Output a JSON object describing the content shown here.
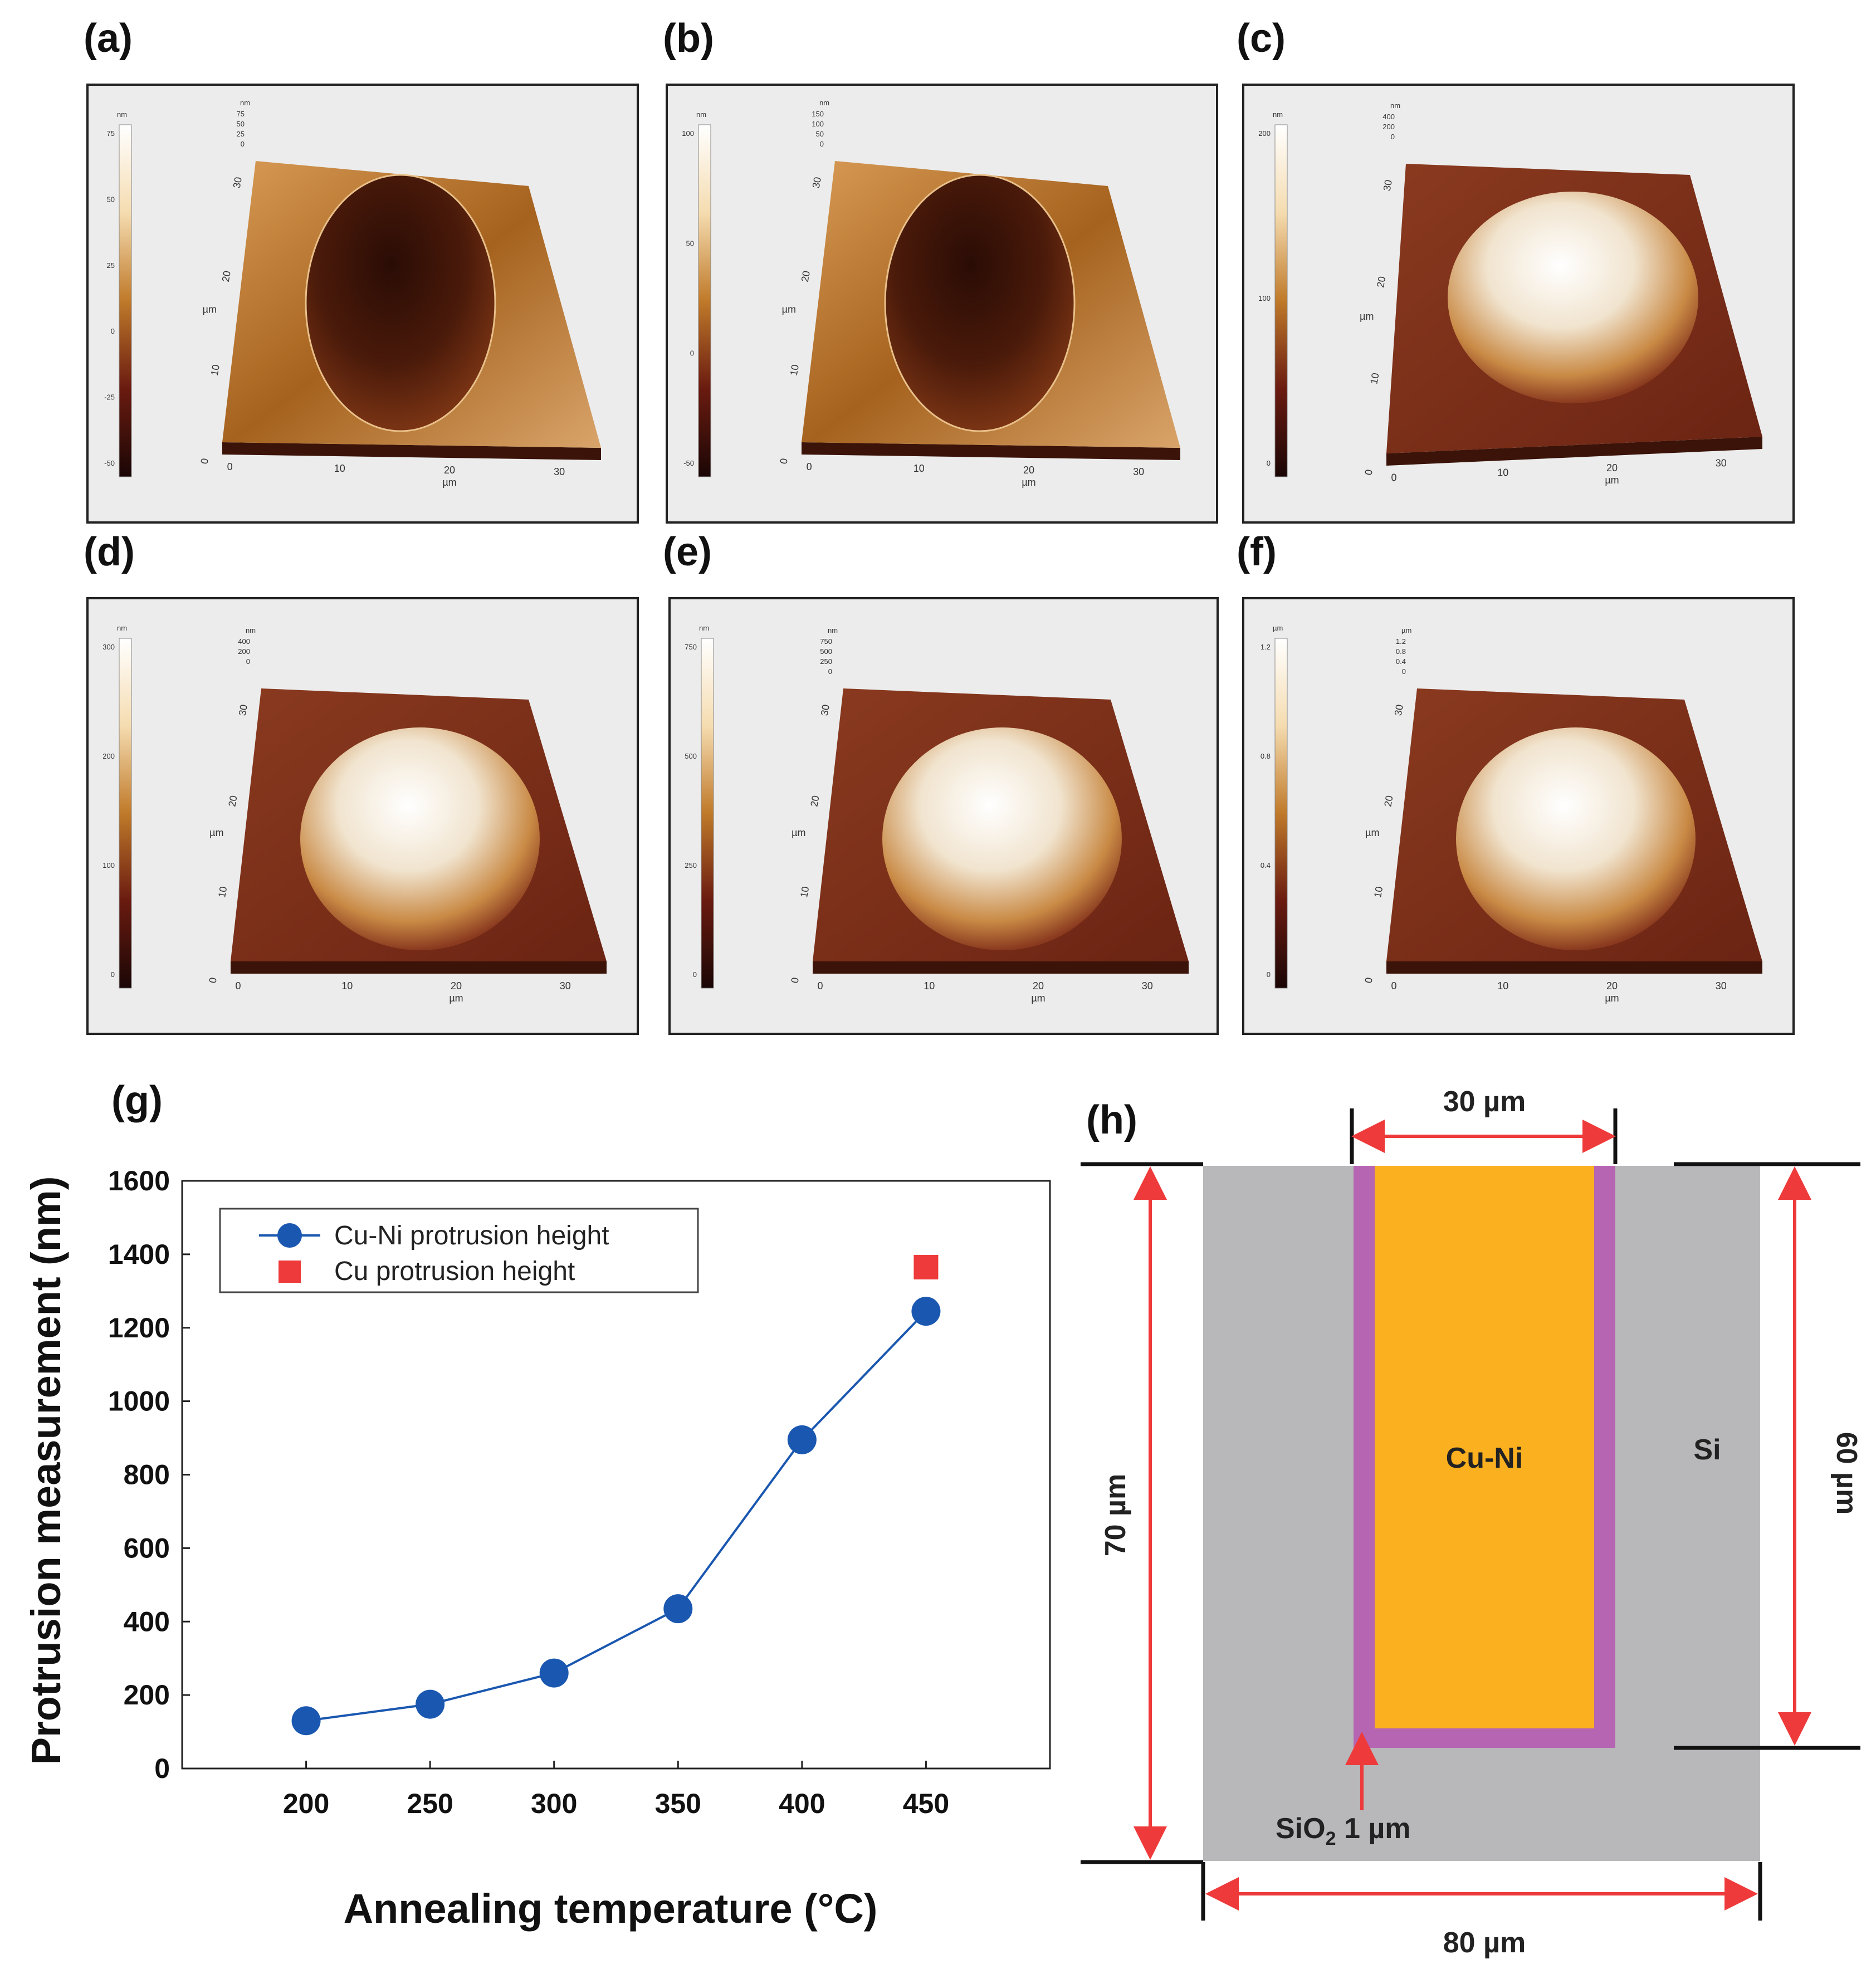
{
  "panels": {
    "a": {
      "label": "(a)",
      "type": "cavity",
      "cb_unit": "nm",
      "cb_ticks": [
        "75",
        "50",
        "25",
        "0",
        "-25",
        "-50"
      ],
      "z_unit": "nm",
      "z_ticks": [
        "75",
        "50",
        "25",
        "0"
      ],
      "y_ticks": [
        "30",
        "20",
        "10",
        "0"
      ],
      "y_unit": "µm",
      "x_ticks": [
        "0",
        "10",
        "20",
        "30"
      ],
      "x_unit": "µm"
    },
    "b": {
      "label": "(b)",
      "type": "cavity",
      "cb_unit": "nm",
      "cb_ticks": [
        "100",
        "50",
        "0",
        "-50"
      ],
      "z_unit": "nm",
      "z_ticks": [
        "150",
        "100",
        "50",
        "0"
      ],
      "y_ticks": [
        "30",
        "20",
        "10",
        "0"
      ],
      "y_unit": "µm",
      "x_ticks": [
        "0",
        "10",
        "20",
        "30"
      ],
      "x_unit": "µm"
    },
    "c": {
      "label": "(c)",
      "type": "rough",
      "cb_unit": "nm",
      "cb_ticks": [
        "200",
        "100",
        "0"
      ],
      "z_unit": "nm",
      "z_ticks": [
        "400",
        "200",
        "0"
      ],
      "y_ticks": [
        "30",
        "20",
        "10",
        "0"
      ],
      "y_unit": "µm",
      "x_ticks": [
        "0",
        "10",
        "20",
        "30"
      ],
      "x_unit": "µm"
    },
    "d": {
      "label": "(d)",
      "type": "dome",
      "cb_unit": "nm",
      "cb_ticks": [
        "300",
        "200",
        "100",
        "0"
      ],
      "z_unit": "nm",
      "z_ticks": [
        "400",
        "200",
        "0"
      ],
      "y_ticks": [
        "30",
        "20",
        "10",
        "0"
      ],
      "y_unit": "µm",
      "x_ticks": [
        "0",
        "10",
        "20",
        "30"
      ],
      "x_unit": "µm"
    },
    "e": {
      "label": "(e)",
      "type": "dome",
      "cb_unit": "nm",
      "cb_ticks": [
        "750",
        "500",
        "250",
        "0"
      ],
      "z_unit": "nm",
      "z_ticks": [
        "750",
        "500",
        "250",
        "0"
      ],
      "y_ticks": [
        "30",
        "20",
        "10",
        "0"
      ],
      "y_unit": "µm",
      "x_ticks": [
        "0",
        "10",
        "20",
        "30"
      ],
      "x_unit": "µm"
    },
    "f": {
      "label": "(f)",
      "type": "dome",
      "cb_unit": "µm",
      "cb_ticks": [
        "1.2",
        "0.8",
        "0.4",
        "0"
      ],
      "z_unit": "µm",
      "z_ticks": [
        "1.2",
        "0.8",
        "0.4",
        "0"
      ],
      "y_ticks": [
        "30",
        "20",
        "10",
        "0"
      ],
      "y_unit": "µm",
      "x_ticks": [
        "0",
        "10",
        "20",
        "30"
      ],
      "x_unit": "µm"
    }
  },
  "chart_data": {
    "label": "(g)",
    "type": "line",
    "xlabel": "Annealing temperature (°C)",
    "ylabel": "Protrusion measurement (nm)",
    "xlim": [
      150,
      500
    ],
    "ylim": [
      0,
      1600
    ],
    "x_ticks": [
      200,
      250,
      300,
      350,
      400,
      450
    ],
    "y_ticks": [
      0,
      200,
      400,
      600,
      800,
      1000,
      1200,
      1400,
      1600
    ],
    "legend_position": "top-left",
    "series": [
      {
        "name": "Cu-Ni protrusion height",
        "color": "#1a57b0",
        "marker": "circle",
        "line": true,
        "x": [
          200,
          250,
          300,
          350,
          400,
          450
        ],
        "y": [
          130,
          175,
          260,
          435,
          895,
          1245
        ]
      },
      {
        "name": "Cu protrusion height",
        "color": "#ee3a3a",
        "marker": "square",
        "line": false,
        "x": [
          450
        ],
        "y": [
          1365
        ]
      }
    ]
  },
  "diagram": {
    "label": "(h)",
    "top_width": "30 µm",
    "left_height": "70 µm",
    "right_height": "60 µm",
    "bottom_width": "80 µm",
    "core_label": "Cu-Ni",
    "substrate_label": "Si",
    "liner_prefix": "SiO",
    "liner_sub": "2",
    "liner_suffix": " 1 µm",
    "colors": {
      "si": "#b8b8ba",
      "core": "#fbb01f",
      "liner": "#b565b2",
      "arrow": "#ee3a3a"
    }
  }
}
